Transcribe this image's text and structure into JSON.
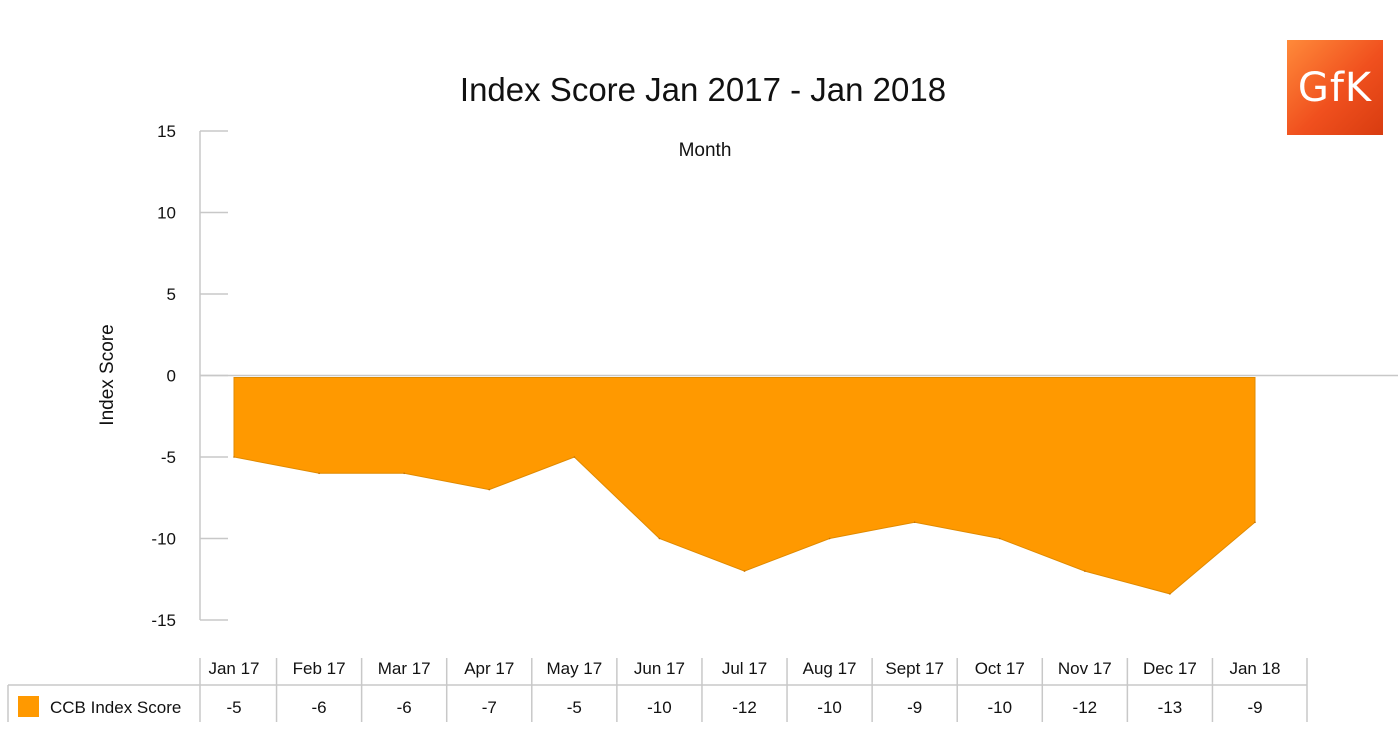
{
  "logo": {
    "text": "GfK"
  },
  "chart_data": {
    "type": "area",
    "title": "Index Score Jan 2017 - Jan 2018",
    "xlabel": "Month",
    "ylabel": "Index Score",
    "ylim": [
      -15,
      15
    ],
    "yticks": [
      15,
      10,
      5,
      0,
      -5,
      -10,
      -15
    ],
    "categories": [
      "Jan 17",
      "Feb 17",
      "Mar 17",
      "Apr 17",
      "May 17",
      "Jun 17",
      "Jul 17",
      "Aug 17",
      "Sept 17",
      "Oct 17",
      "Nov 17",
      "Dec 17",
      "Jan 18"
    ],
    "series": [
      {
        "name": "CCB Index Score",
        "color": "#ff9900",
        "values": [
          -5,
          -6,
          -6,
          -7,
          -5,
          -10,
          -12,
          -10,
          -9,
          -10,
          -12,
          -13,
          -9
        ],
        "plotted": [
          -5,
          -6,
          -6,
          -7,
          -5,
          -10,
          -12,
          -10,
          -9,
          -10,
          -12,
          -13.4,
          -9
        ]
      }
    ],
    "grid": false,
    "legend": "data table below chart"
  }
}
